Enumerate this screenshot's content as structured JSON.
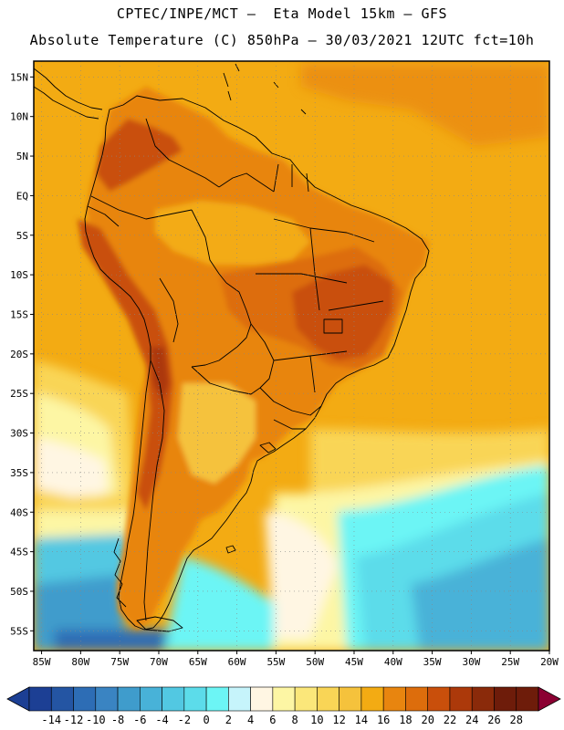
{
  "header": {
    "line1": "CPTEC/INPE/MCT –  Eta Model 15km – GFS",
    "line2": "Absolute Temperature (C) 850hPa – 30/03/2021 12UTC fct=10h"
  },
  "map": {
    "lat_labels": [
      "15N",
      "10N",
      "5N",
      "EQ",
      "5S",
      "10S",
      "15S",
      "20S",
      "25S",
      "30S",
      "35S",
      "40S",
      "45S",
      "50S",
      "55S"
    ],
    "lon_labels": [
      "85W",
      "80W",
      "75W",
      "70W",
      "65W",
      "60W",
      "55W",
      "50W",
      "45W",
      "40W",
      "35W",
      "30W",
      "25W",
      "20W"
    ],
    "lat_values": [
      15,
      10,
      5,
      0,
      -5,
      -10,
      -15,
      -20,
      -25,
      -30,
      -35,
      -40,
      -45,
      -50,
      -55
    ],
    "lon_values": [
      -85,
      -80,
      -75,
      -70,
      -65,
      -60,
      -55,
      -50,
      -45,
      -40,
      -35,
      -30,
      -25,
      -20
    ],
    "lat_range": [
      -57.5,
      17.0
    ],
    "lon_range": [
      -86.0,
      -20.0
    ]
  },
  "colorbar": {
    "labels": [
      "-14",
      "-12",
      "-10",
      "-8",
      "-6",
      "-4",
      "-2",
      "0",
      "2",
      "4",
      "6",
      "8",
      "10",
      "12",
      "14",
      "16",
      "18",
      "20",
      "22",
      "24",
      "26",
      "28"
    ],
    "colors": [
      "#1c3f94",
      "#2455a3",
      "#2d6db5",
      "#3a84c2",
      "#3f9ccc",
      "#48b2d8",
      "#52c8e2",
      "#5cdcea",
      "#6cf5f5",
      "#c6f4fb",
      "#fff6e3",
      "#fdf6a4",
      "#fbe77a",
      "#f9d556",
      "#f5c23c",
      "#f3ab13",
      "#e8850f",
      "#dd6d0c",
      "#c94f0b",
      "#ac390a",
      "#8a2a0a",
      "#6e1c0a",
      "#8b0032"
    ],
    "min_color": "#1c3f94",
    "max_color": "#8b0032"
  },
  "colors": {
    "ocean_warm": "#f0a010",
    "ocean_mid": "#f5c23c",
    "ocean_cool": "#fff6e3",
    "ocean_cold": "#5cdcea",
    "land_hot": "#dd6d0c",
    "land_very_hot": "#c94f0b"
  }
}
